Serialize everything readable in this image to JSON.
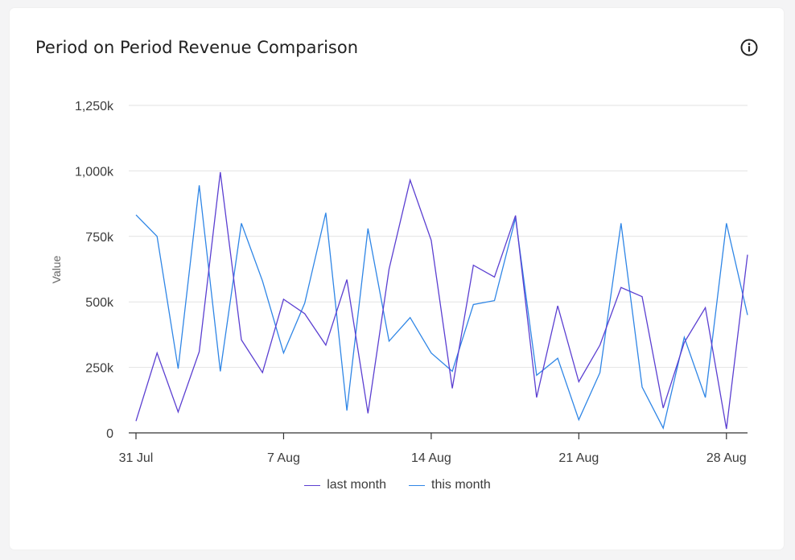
{
  "card": {
    "title": "Period on Period Revenue Comparison",
    "info_icon": "info-circle-icon"
  },
  "colors": {
    "last_month": "#5b3fd1",
    "this_month": "#2f86e6",
    "grid": "#e2e2e2",
    "axis": "#333333"
  },
  "chart_data": {
    "type": "line",
    "title": "Period on Period Revenue Comparison",
    "xlabel": "",
    "ylabel": "Value",
    "ylim": [
      0,
      1250000
    ],
    "yticks": [
      0,
      250000,
      500000,
      750000,
      1000000,
      1250000
    ],
    "ytick_labels": [
      "0",
      "250k",
      "500k",
      "750k",
      "1,000k",
      "1,250k"
    ],
    "xlim": [
      "2023-07-31",
      "2023-08-29"
    ],
    "xticks": [
      "2023-07-31",
      "2023-08-07",
      "2023-08-14",
      "2023-08-21",
      "2023-08-28"
    ],
    "xtick_labels": [
      "31 Jul",
      "7 Aug",
      "14 Aug",
      "21 Aug",
      "28 Aug"
    ],
    "x": [
      "2023-07-31",
      "2023-08-01",
      "2023-08-02",
      "2023-08-03",
      "2023-08-04",
      "2023-08-05",
      "2023-08-06",
      "2023-08-07",
      "2023-08-08",
      "2023-08-09",
      "2023-08-10",
      "2023-08-11",
      "2023-08-12",
      "2023-08-13",
      "2023-08-14",
      "2023-08-15",
      "2023-08-16",
      "2023-08-17",
      "2023-08-18",
      "2023-08-19",
      "2023-08-20",
      "2023-08-21",
      "2023-08-22",
      "2023-08-23",
      "2023-08-24",
      "2023-08-25",
      "2023-08-26",
      "2023-08-27",
      "2023-08-28",
      "2023-08-29"
    ],
    "grid": true,
    "legend_position": "bottom",
    "series": [
      {
        "name": "last month",
        "values": [
          45000,
          305000,
          80000,
          310000,
          995000,
          355000,
          230000,
          510000,
          455000,
          335000,
          585000,
          75000,
          625000,
          965000,
          735000,
          170000,
          640000,
          595000,
          830000,
          135000,
          485000,
          195000,
          335000,
          555000,
          520000,
          95000,
          345000,
          478000,
          15000,
          680000
        ]
      },
      {
        "name": "this month",
        "values": [
          832000,
          750000,
          245000,
          945000,
          235000,
          800000,
          580000,
          305000,
          495000,
          840000,
          85000,
          780000,
          350000,
          440000,
          305000,
          235000,
          490000,
          505000,
          820000,
          220000,
          285000,
          50000,
          230000,
          800000,
          175000,
          18000,
          365000,
          135000,
          800000,
          450000
        ]
      }
    ]
  }
}
